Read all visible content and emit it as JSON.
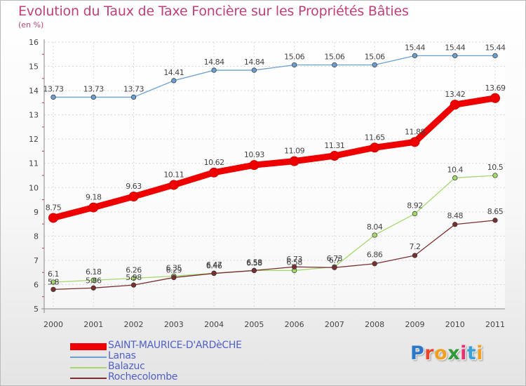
{
  "header": {
    "title": "Evolution du Taux de Taxe Foncière sur les Propriétés Bâties",
    "subtitle": "(en %)"
  },
  "logo": {
    "text": "Proxiti"
  },
  "chart_data": {
    "type": "line",
    "title": "Evolution du Taux de Taxe Foncière sur les Propriétés Bâties",
    "ylabel": "(en %)",
    "xlabel": "",
    "ylim": [
      5,
      16
    ],
    "y_ticks": [
      "5",
      "6",
      "7",
      "8",
      "9",
      "10",
      "11",
      "12",
      "13",
      "14",
      "15",
      "16"
    ],
    "x": [
      "2000",
      "2001",
      "2002",
      "2003",
      "2004",
      "2005",
      "2006",
      "2007",
      "2008",
      "2009",
      "2010",
      "2011"
    ],
    "grid": true,
    "legend_position": "bottom-left",
    "series": [
      {
        "name": "SAINT-MAURICE-D'ARDèCHE",
        "color": "#ee0000",
        "values": [
          8.75,
          9.18,
          9.63,
          10.11,
          10.62,
          10.93,
          11.09,
          11.31,
          11.65,
          11.88,
          13.42,
          13.69
        ],
        "labels": [
          "8.75",
          "9.18",
          "9.63",
          "10.11",
          "10.62",
          "10.93",
          "11.09",
          "11.31",
          "11.65",
          "11.88",
          "13.42",
          "13.69"
        ]
      },
      {
        "name": "Lanas",
        "color": "#6a9fd0",
        "values": [
          13.73,
          13.73,
          13.73,
          14.41,
          14.84,
          14.84,
          15.06,
          15.06,
          15.06,
          15.44,
          15.44,
          15.44
        ],
        "labels": [
          "13.73",
          "13.73",
          "13.73",
          "14.41",
          "14.84",
          "14.84",
          "15.06",
          "15.06",
          "15.06",
          "15.44",
          "15.44",
          "15.44"
        ]
      },
      {
        "name": "Balazuc",
        "color": "#a4d86e",
        "values": [
          6.1,
          6.18,
          6.26,
          6.35,
          6.47,
          6.58,
          6.58,
          6.73,
          8.04,
          8.92,
          10.4,
          10.5
        ],
        "labels": [
          "6.1",
          "6.18",
          "6.26",
          "6.35",
          "6.47",
          "6.58",
          "6.58",
          "6.73",
          "8.04",
          "8.92",
          "10.4",
          "10.5"
        ]
      },
      {
        "name": "Rochecolombe",
        "color": "#7a2f2f",
        "values": [
          5.8,
          5.86,
          5.98,
          6.29,
          6.46,
          6.58,
          6.73,
          6.7,
          6.86,
          7.2,
          8.48,
          8.65
        ],
        "labels": [
          "5.8",
          "5.86",
          "5.98",
          "6.29",
          "6.46",
          "6.58",
          "6.73",
          "6.7",
          "6.86",
          "7.2",
          "8.48",
          "8.65"
        ]
      }
    ]
  }
}
